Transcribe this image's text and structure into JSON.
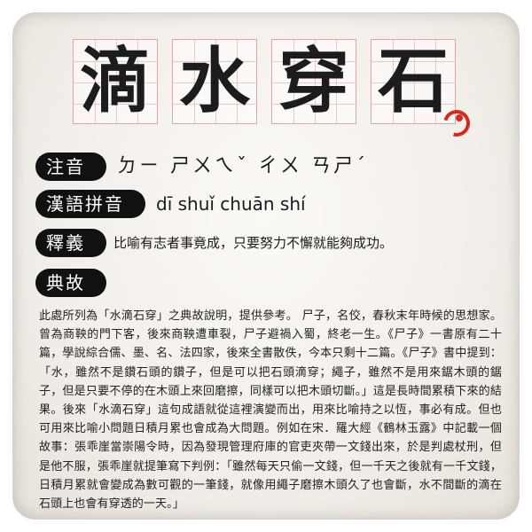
{
  "title": {
    "chars": [
      "滴",
      "水",
      "穿",
      "石"
    ]
  },
  "labels": {
    "zhuyin": "注音",
    "pinyin": "漢語拼音",
    "shiyi": "釋義",
    "diangu": "典故"
  },
  "zhuyin_value": "ㄉㄧ ㄕㄨㄟˇ ㄔㄨ ㄢㄕˊ",
  "pinyin_value": "dī shuǐ chuān shí",
  "shiyi_value": "比喻有志者事竟成，只要努力不懈就能夠成功。",
  "story": "此處所列為「水滴石穿」之典故說明，提供參考。 尸子，名佼，春秋末年時候的思想家。曾為商鞅的門下客，後來商鞅遭車裂，尸子避禍入蜀，終老一生。《尸子》一書原有二十篇，學說綜合儒、墨、名、法四家，後來全書散佚，今本只剩十二篇。《尸子》書中提到：「水，雖然不是鑽石頭的鑽子，但是可以把石頭滴穿；繩子，雖然不是用來鋸木頭的鋸子，但是只要不停的在木頭上來回磨擦，同樣可以把木頭切斷。」這是長時間累積下來的結果。後來「水滴石穿」這句成語就從這裡演變而出，用來比喻持之以恆，事必有成。但也可用來比喻小問題日積月累也會成為大問題。例如在宋．羅大經《鶴林玉露》中記載一個故事：張乖崖當崇陽令時，因為發現管理府庫的官吏夾帶一文錢出來，於是判處杖刑，但是他不服，張乖崖就提筆寫下判例：「雖然每天只偷一文錢，但一千天之後就有一千文錢，日積月累就會變成為數可觀的一筆錢，就像用繩子磨擦木頭久了也會斷，水不間斷的滴在石頭上也會有穿透的一天。」",
  "colors": {
    "accent_red": "#d42a1e",
    "grid_pink": "#e4a6a0",
    "label_bg": "#111111"
  }
}
